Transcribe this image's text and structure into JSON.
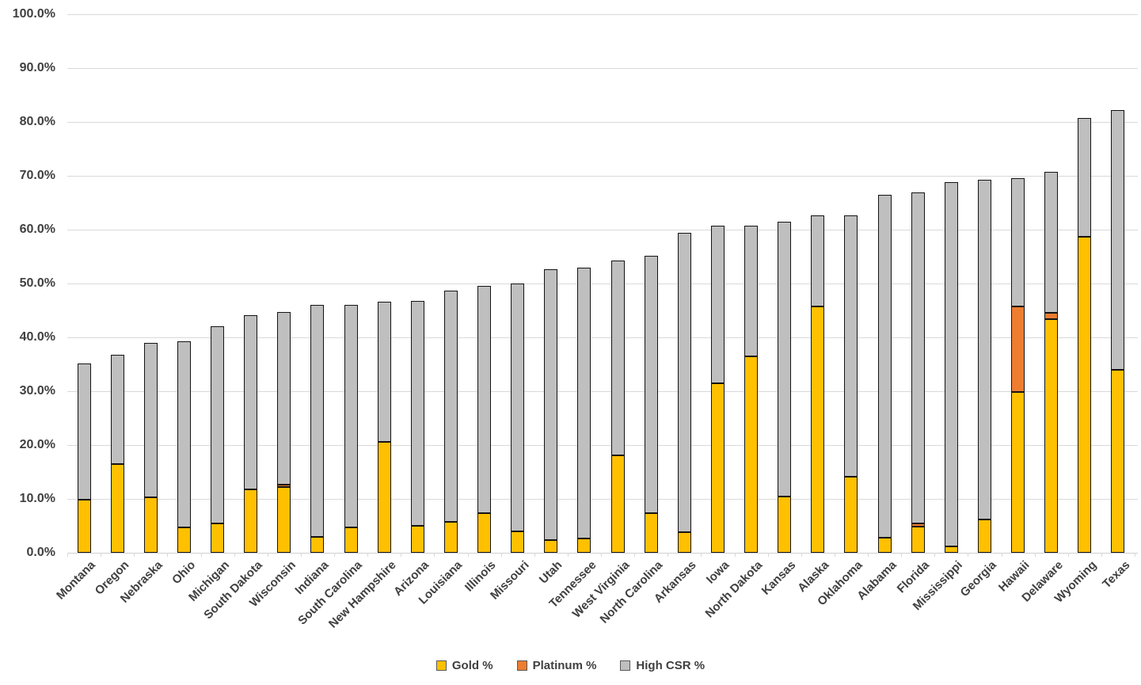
{
  "chart_data": {
    "type": "bar",
    "stacked": true,
    "title": "",
    "xlabel": "",
    "ylabel": "",
    "grid": true,
    "categories": [
      "Montana",
      "Oregon",
      "Nebraska",
      "Ohio",
      "Michigan",
      "South Dakota",
      "Wisconsin",
      "Indiana",
      "South Carolina",
      "New Hampshire",
      "Arizona",
      "Louisiana",
      "Illinois",
      "Missouri",
      "Utah",
      "Tennessee",
      "West Virginia",
      "North Carolina",
      "Arkansas",
      "Iowa",
      "North Dakota",
      "Kansas",
      "Alaska",
      "Oklahoma",
      "Alabama",
      "Florida",
      "Mississippi",
      "Georgia",
      "Hawaii",
      "Delaware",
      "Wyoming",
      "Texas"
    ],
    "series": [
      {
        "name": "Gold %",
        "color": "#FFC000",
        "values": [
          9.8,
          16.5,
          10.3,
          4.7,
          5.5,
          11.8,
          12.2,
          3.0,
          4.7,
          20.6,
          5.0,
          5.8,
          7.4,
          4.0,
          2.3,
          2.7,
          18.1,
          7.3,
          3.8,
          31.5,
          36.5,
          10.4,
          45.8,
          14.1,
          2.8,
          4.9,
          1.2,
          6.2,
          29.8,
          43.4,
          58.7,
          34.0
        ]
      },
      {
        "name": "Platinum %",
        "color": "#ED7D31",
        "values": [
          0,
          0,
          0,
          0,
          0,
          0,
          0.5,
          0,
          0,
          0,
          0,
          0,
          0,
          0,
          0,
          0,
          0,
          0,
          0,
          0,
          0,
          0,
          0,
          0,
          0,
          0.6,
          0,
          0,
          16.0,
          1.2,
          0,
          0
        ]
      },
      {
        "name": "High CSR %",
        "color": "#BFBFBF",
        "values": [
          25.4,
          20.3,
          28.7,
          34.5,
          36.5,
          32.3,
          32.0,
          43.1,
          41.4,
          26.0,
          41.8,
          42.9,
          42.1,
          46.0,
          50.3,
          50.3,
          36.1,
          47.8,
          55.6,
          29.2,
          24.3,
          51.1,
          16.8,
          48.5,
          63.6,
          61.4,
          67.6,
          63.1,
          23.7,
          26.1,
          22.1,
          48.2
        ]
      }
    ],
    "y_axis": {
      "min": 0,
      "max": 100,
      "step": 10,
      "tick_labels": [
        "0.0%",
        "10.0%",
        "20.0%",
        "30.0%",
        "40.0%",
        "50.0%",
        "60.0%",
        "70.0%",
        "80.0%",
        "90.0%",
        "100.0%"
      ]
    },
    "x_axis": {
      "label_rotation_deg": -45
    },
    "legend": {
      "position": "bottom",
      "entries": [
        "Gold %",
        "Platinum %",
        "High CSR %"
      ]
    },
    "colors": {
      "background": "#FFFFFF",
      "gridline": "#D9D9D9",
      "axis_line": "#CFCFCF",
      "bar_border": "#141414",
      "text": "#404040",
      "legend_swatch_border": "#595959"
    }
  }
}
